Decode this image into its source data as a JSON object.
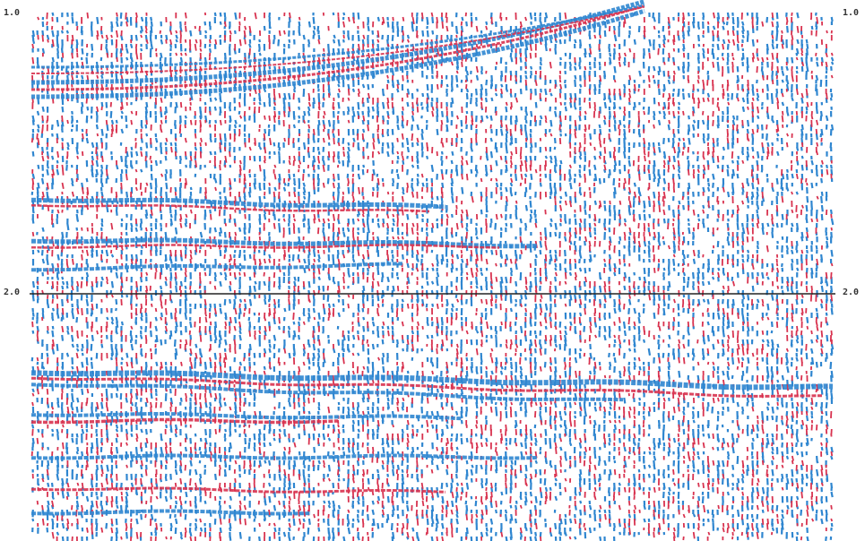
{
  "time_labels": {
    "left": [
      "1.0",
      "2.0"
    ],
    "right": [
      "1.0",
      "2.0"
    ]
  }
}
